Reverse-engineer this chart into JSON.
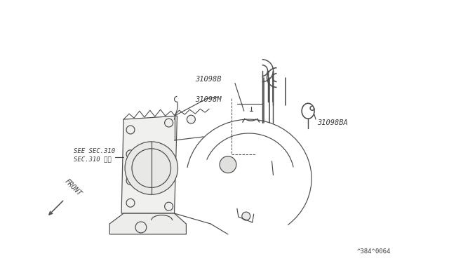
{
  "bg_color": "#ffffff",
  "line_color": "#4a4a4a",
  "text_color": "#3a3a3a",
  "see_sec_label": "SEE SEC.310",
  "see_sec_label2": "SEC.310 参照",
  "front_label": "FRONT",
  "diagram_id": "^384^0064",
  "label_31098B": "31098B",
  "label_31098M": "31098M",
  "label_31098BA": "31098BA"
}
